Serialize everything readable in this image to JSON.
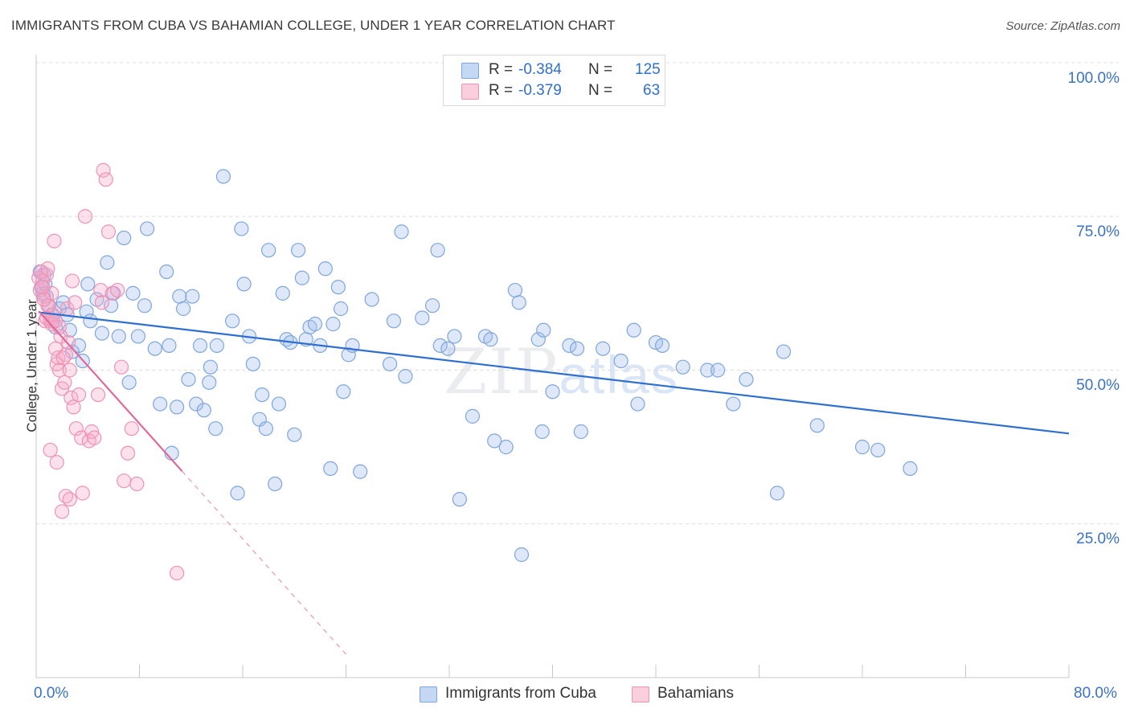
{
  "title": "IMMIGRANTS FROM CUBA VS BAHAMIAN COLLEGE, UNDER 1 YEAR CORRELATION CHART",
  "source": "Source: ZipAtlas.com",
  "watermark": {
    "zip": "ZIP",
    "atlas": "atlas"
  },
  "legend": {
    "r_label": "R =",
    "n_label": "N =",
    "rows": [
      {
        "r": "-0.384",
        "n": "125",
        "color": "#aec8ef"
      },
      {
        "r": "-0.379",
        "n": "63",
        "color": "#f5b8ce"
      }
    ]
  },
  "bottom_legend": {
    "cuba": "Immigrants from Cuba",
    "bahamians": "Bahamians"
  },
  "y_axis_label": "College, Under 1 year",
  "y_ticks": [
    "100.0%",
    "75.0%",
    "50.0%",
    "25.0%"
  ],
  "x_ticks": [
    "0.0%",
    "80.0%"
  ],
  "colors": {
    "cuba_fill": "rgba(160,190,235,0.35)",
    "cuba_stroke": "#7ea6e0",
    "cuba_line": "#2f6fd0",
    "bah_fill": "rgba(245,170,200,0.35)",
    "bah_stroke": "#ef93b5",
    "bah_line": "#e0699a",
    "grid": "#dcdcdc",
    "tick_text": "#3a72c8"
  },
  "chart_data": {
    "type": "scatter",
    "title": "IMMIGRANTS FROM CUBA VS BAHAMIAN COLLEGE, UNDER 1 YEAR CORRELATION CHART",
    "xlabel": "",
    "ylabel": "College, Under 1 year",
    "xlim": [
      0,
      80
    ],
    "ylim": [
      0,
      100
    ],
    "grid": true,
    "legend_placement": "top-center",
    "series": [
      {
        "name": "Immigrants from Cuba",
        "r": -0.384,
        "n": 125,
        "trend": {
          "x": [
            0.2,
            80
          ],
          "y": [
            59.4,
            39.7
          ]
        },
        "points": [
          [
            0.3,
            66
          ],
          [
            0.4,
            63.5
          ],
          [
            0.5,
            62.5
          ],
          [
            0.6,
            65.5
          ],
          [
            0.7,
            64
          ],
          [
            0.8,
            62
          ],
          [
            1,
            60.5
          ],
          [
            1.2,
            59
          ],
          [
            1.3,
            58
          ],
          [
            1.5,
            57
          ],
          [
            1.8,
            60
          ],
          [
            2.1,
            61
          ],
          [
            2.4,
            59
          ],
          [
            2.6,
            56.5
          ],
          [
            2.8,
            53
          ],
          [
            3.3,
            54
          ],
          [
            3.6,
            51.5
          ],
          [
            3.9,
            59.5
          ],
          [
            4,
            64
          ],
          [
            4.2,
            58
          ],
          [
            4.7,
            61.5
          ],
          [
            5.1,
            56
          ],
          [
            5.5,
            67.5
          ],
          [
            5.8,
            60.5
          ],
          [
            6,
            62.5
          ],
          [
            6.4,
            55.5
          ],
          [
            6.8,
            71.5
          ],
          [
            7.2,
            48
          ],
          [
            7.5,
            62.5
          ],
          [
            7.9,
            55.5
          ],
          [
            8.4,
            60.5
          ],
          [
            8.6,
            73
          ],
          [
            9.2,
            53.5
          ],
          [
            9.6,
            44.5
          ],
          [
            10.1,
            66
          ],
          [
            10.3,
            54
          ],
          [
            10.5,
            36.5
          ],
          [
            10.9,
            44
          ],
          [
            11.1,
            62
          ],
          [
            11.4,
            60
          ],
          [
            11.8,
            48.5
          ],
          [
            12.1,
            62
          ],
          [
            12.4,
            44.5
          ],
          [
            12.7,
            54
          ],
          [
            13,
            43.5
          ],
          [
            13.4,
            48
          ],
          [
            13.5,
            50.5
          ],
          [
            13.9,
            40.5
          ],
          [
            14,
            54
          ],
          [
            14.5,
            81.5
          ],
          [
            15.2,
            58
          ],
          [
            15.6,
            30
          ],
          [
            15.9,
            73
          ],
          [
            16.1,
            64
          ],
          [
            16.5,
            55.5
          ],
          [
            16.8,
            51
          ],
          [
            17.3,
            42
          ],
          [
            17.5,
            46
          ],
          [
            17.8,
            40.5
          ],
          [
            18,
            69.5
          ],
          [
            18.5,
            31.5
          ],
          [
            18.8,
            44.5
          ],
          [
            19.1,
            62.5
          ],
          [
            19.4,
            55
          ],
          [
            19.7,
            54.5
          ],
          [
            20,
            39.5
          ],
          [
            20.3,
            69.5
          ],
          [
            20.6,
            65
          ],
          [
            20.9,
            55
          ],
          [
            21.2,
            57
          ],
          [
            21.6,
            57.5
          ],
          [
            22,
            54
          ],
          [
            22.4,
            66.5
          ],
          [
            22.8,
            34
          ],
          [
            23,
            57.5
          ],
          [
            23.4,
            63.5
          ],
          [
            23.6,
            60
          ],
          [
            23.8,
            46.5
          ],
          [
            24.2,
            52.5
          ],
          [
            24.5,
            54
          ],
          [
            25.1,
            33.5
          ],
          [
            26,
            61.5
          ],
          [
            27.4,
            51
          ],
          [
            27.7,
            58
          ],
          [
            28.3,
            72.5
          ],
          [
            28.6,
            49
          ],
          [
            29.9,
            58.5
          ],
          [
            30.7,
            60.5
          ],
          [
            31.1,
            69.5
          ],
          [
            31.3,
            54
          ],
          [
            31.9,
            53.5
          ],
          [
            32.4,
            55.5
          ],
          [
            32.8,
            29
          ],
          [
            33.8,
            42.5
          ],
          [
            34.8,
            55.5
          ],
          [
            35.2,
            55
          ],
          [
            35.5,
            38.5
          ],
          [
            36.4,
            37.5
          ],
          [
            37.1,
            63
          ],
          [
            37.4,
            61
          ],
          [
            37.6,
            20
          ],
          [
            38.9,
            55
          ],
          [
            39.3,
            56.5
          ],
          [
            39.2,
            40
          ],
          [
            40,
            46.5
          ],
          [
            41.3,
            54
          ],
          [
            41.9,
            53.5
          ],
          [
            42.2,
            40
          ],
          [
            43.9,
            53.5
          ],
          [
            45.3,
            51.5
          ],
          [
            46.3,
            56.5
          ],
          [
            46.6,
            44.5
          ],
          [
            48,
            54.5
          ],
          [
            48.5,
            54
          ],
          [
            50.1,
            50.5
          ],
          [
            52,
            50
          ],
          [
            52.8,
            50
          ],
          [
            54,
            44.5
          ],
          [
            55,
            48.5
          ],
          [
            57.4,
            30
          ],
          [
            57.9,
            53
          ],
          [
            60.5,
            41
          ],
          [
            64,
            37.5
          ],
          [
            65.2,
            37
          ],
          [
            67.7,
            34
          ]
        ]
      },
      {
        "name": "Bahamians",
        "r": -0.379,
        "n": 63,
        "trend": {
          "x": [
            0.2,
            24
          ],
          "y": [
            59.6,
            3.8
          ]
        },
        "points": [
          [
            0.2,
            65
          ],
          [
            0.3,
            63
          ],
          [
            0.4,
            66
          ],
          [
            0.5,
            64.5
          ],
          [
            0.6,
            62
          ],
          [
            0.7,
            58
          ],
          [
            0.8,
            65.5
          ],
          [
            0.9,
            66.5
          ],
          [
            1,
            60.5
          ],
          [
            1.1,
            58
          ],
          [
            1.2,
            62.5
          ],
          [
            1.3,
            59
          ],
          [
            1.4,
            71
          ],
          [
            1.5,
            53.5
          ],
          [
            1.6,
            51
          ],
          [
            1.7,
            52
          ],
          [
            1.8,
            50
          ],
          [
            1.9,
            55.5
          ],
          [
            2,
            47
          ],
          [
            2.2,
            48
          ],
          [
            2.3,
            52.5
          ],
          [
            2.4,
            60
          ],
          [
            2.6,
            50
          ],
          [
            2.7,
            45.5
          ],
          [
            2.8,
            64.5
          ],
          [
            2.9,
            44
          ],
          [
            3.1,
            40.5
          ],
          [
            3.3,
            46
          ],
          [
            3.5,
            39
          ],
          [
            3.6,
            30
          ],
          [
            3.8,
            75
          ],
          [
            4.1,
            38.5
          ],
          [
            4.3,
            40
          ],
          [
            4.5,
            39
          ],
          [
            4.8,
            46
          ],
          [
            5,
            63
          ],
          [
            5.1,
            61
          ],
          [
            5.2,
            82.5
          ],
          [
            5.4,
            81
          ],
          [
            5.6,
            72.5
          ],
          [
            5.9,
            62.5
          ],
          [
            6.3,
            63
          ],
          [
            6.6,
            50.5
          ],
          [
            6.8,
            32
          ],
          [
            7.1,
            36.5
          ],
          [
            7.4,
            40.5
          ],
          [
            7.8,
            31.5
          ],
          [
            1.1,
            37
          ],
          [
            1.6,
            35
          ],
          [
            2,
            27
          ],
          [
            2.3,
            29.5
          ],
          [
            2.6,
            29
          ],
          [
            2.5,
            54.5
          ],
          [
            1.8,
            57
          ],
          [
            1.2,
            57.5
          ],
          [
            0.9,
            60.5
          ],
          [
            0.6,
            61.5
          ],
          [
            0.5,
            63.5
          ],
          [
            3,
            61
          ],
          [
            2.1,
            52
          ],
          [
            10.9,
            17
          ],
          [
            0.8,
            58.5
          ],
          [
            1.5,
            58
          ]
        ]
      }
    ]
  }
}
